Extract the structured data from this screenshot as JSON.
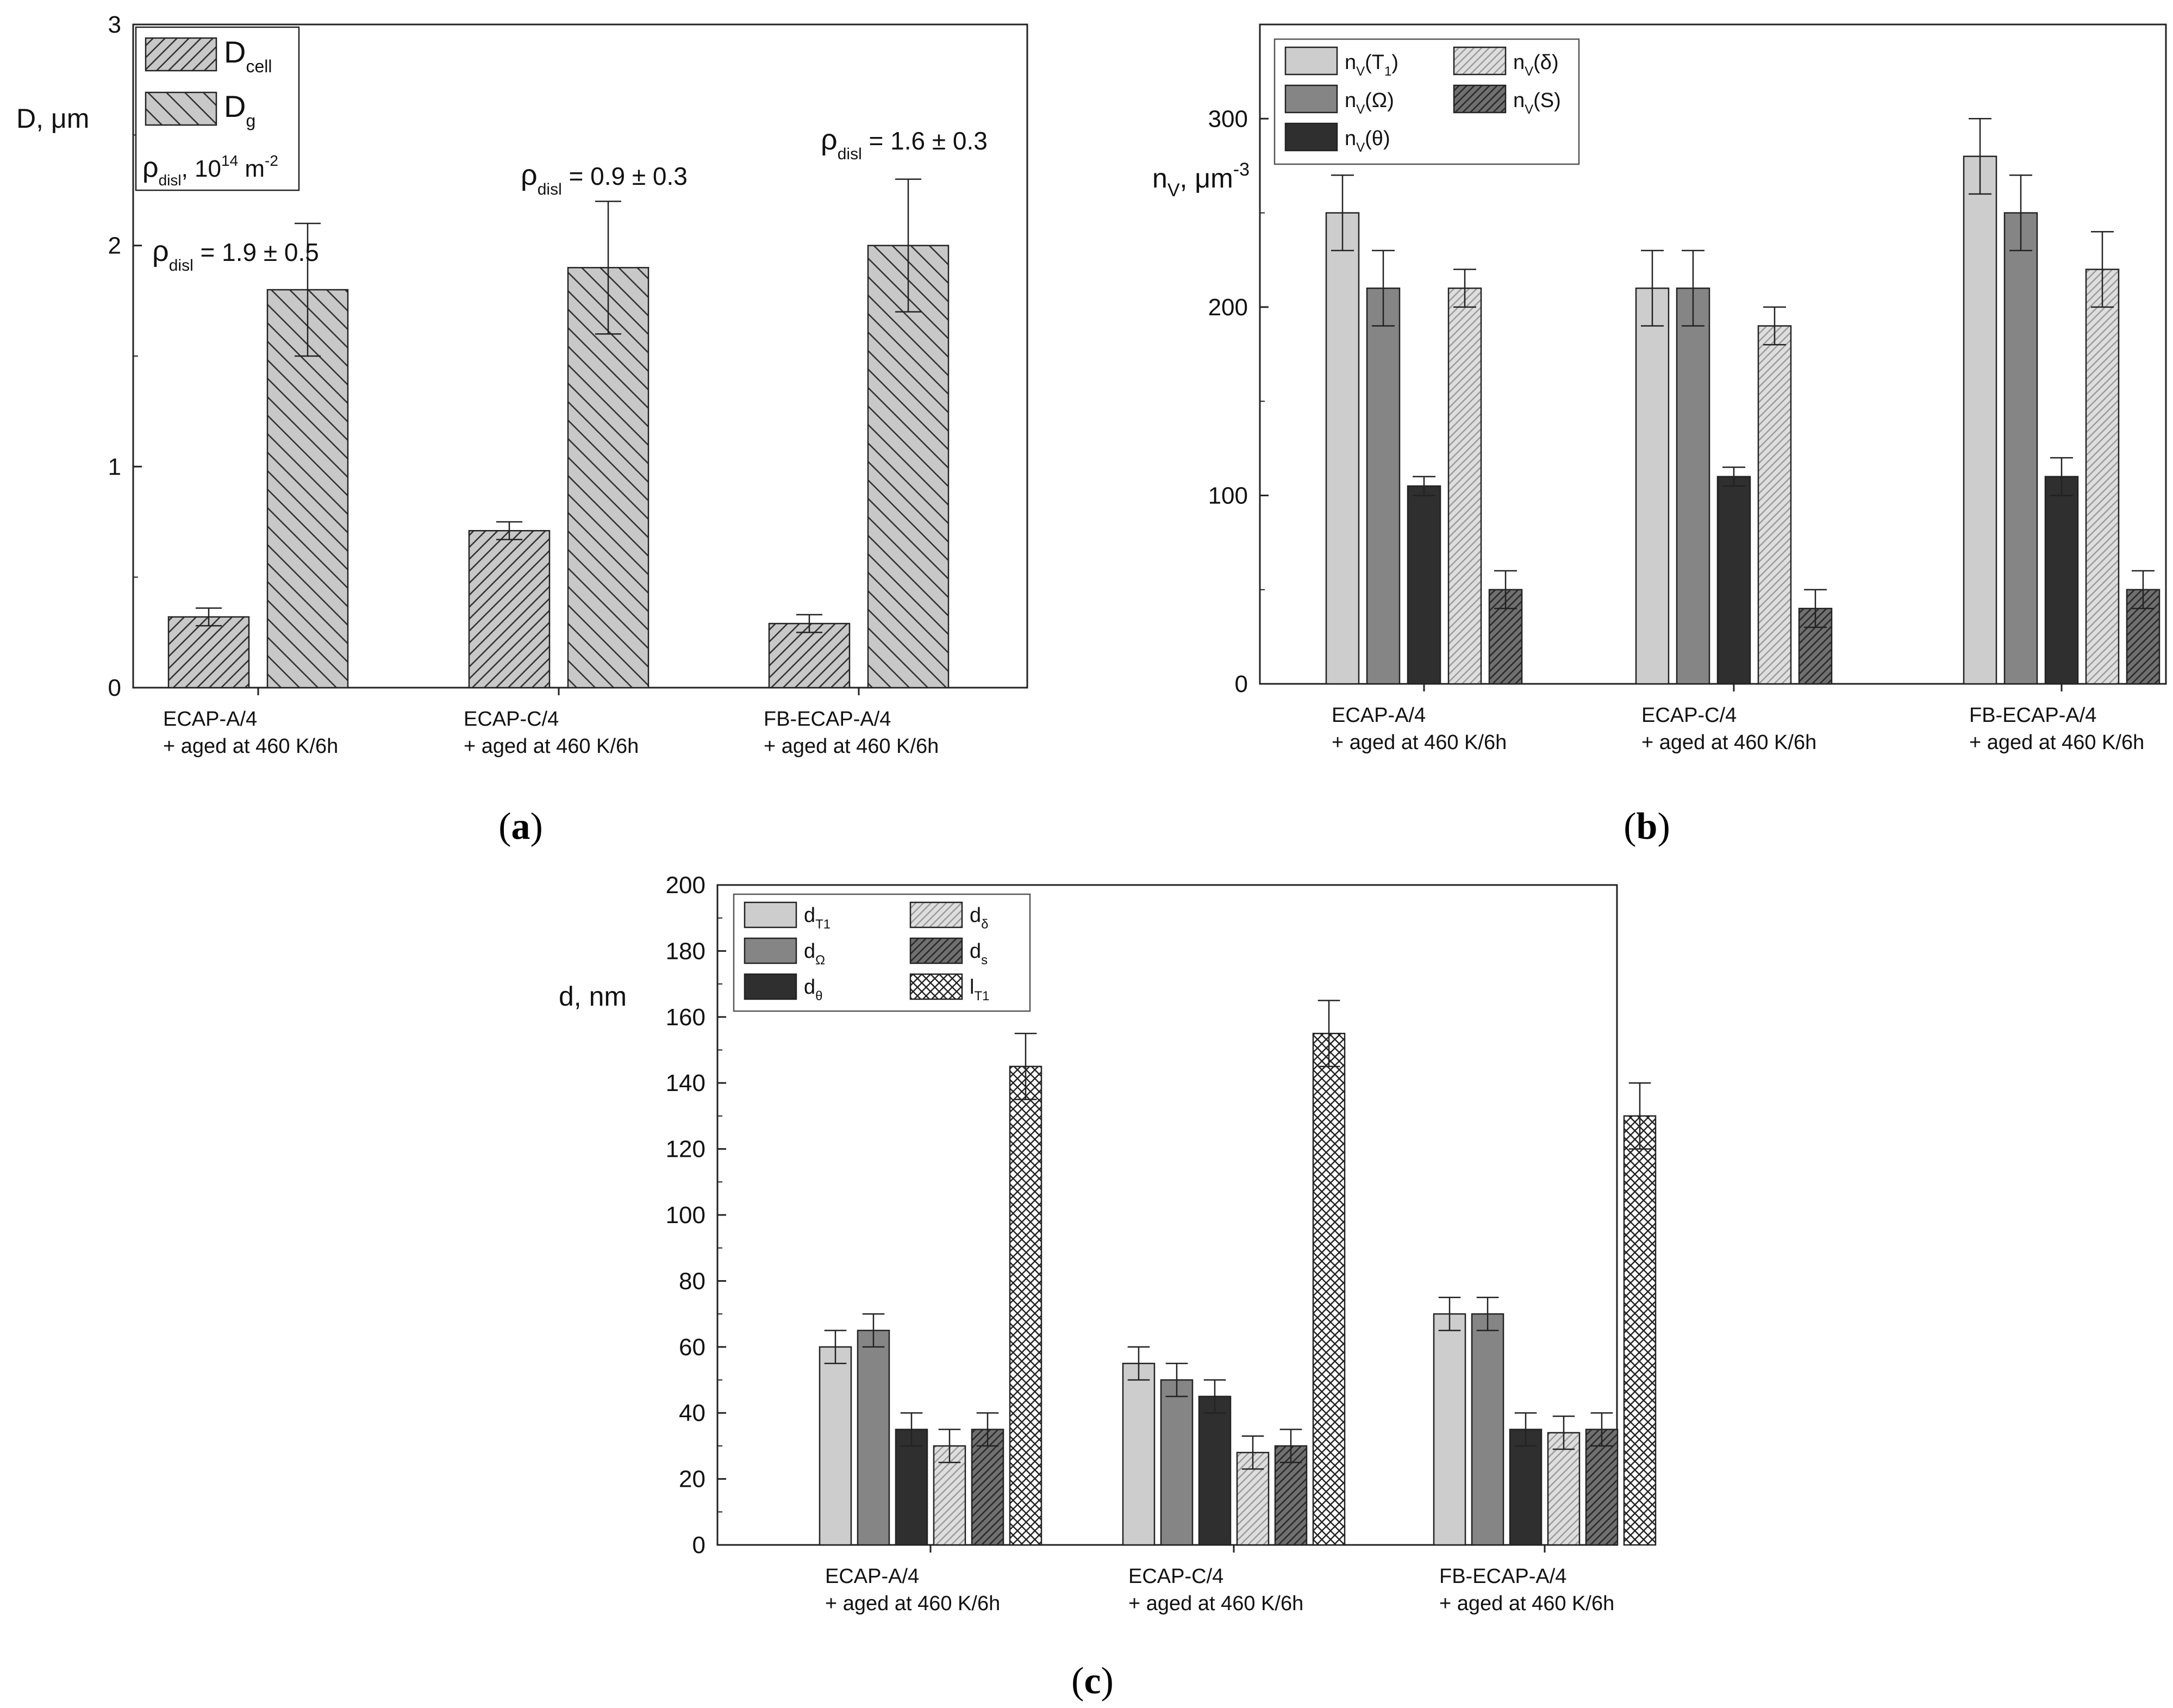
{
  "captions": {
    "a": {
      "open": "(",
      "letter": "a",
      "close": ")"
    },
    "b": {
      "open": "(",
      "letter": "b",
      "close": ")"
    },
    "c": {
      "open": "(",
      "letter": "c",
      "close": ")"
    }
  },
  "category_lines": [
    [
      "ECAP-A/4",
      "+ aged at 460 K/6h"
    ],
    [
      "ECAP-C/4",
      "+ aged at 460 K/6h"
    ],
    [
      "FB-ECAP-A/4",
      "+ aged at 460 K/6h"
    ]
  ],
  "chart_data": [
    {
      "id": "a",
      "type": "bar",
      "ylabel": "D, μm",
      "ylim": [
        0,
        3
      ],
      "yticks": [
        0,
        1,
        2,
        3
      ],
      "categories": [
        "ECAP-A/4 + aged at 460 K/6h",
        "ECAP-C/4 + aged at 460 K/6h",
        "FB-ECAP-A/4 + aged at 460 K/6h"
      ],
      "series": [
        {
          "name": "D_cell",
          "label": "D",
          "sub": "cell",
          "values": [
            0.32,
            0.71,
            0.29
          ],
          "errors": [
            0.04,
            0.04,
            0.04
          ],
          "fill": "#c8c8c8",
          "pattern": "hatch-fwd"
        },
        {
          "name": "D_g",
          "label": "D",
          "sub": "g",
          "values": [
            1.8,
            1.9,
            2.0
          ],
          "errors": [
            0.3,
            0.3,
            0.3
          ],
          "fill": "#c8c8c8",
          "pattern": "hatch-back"
        }
      ],
      "legend": {
        "position": "top-left",
        "note": {
          "rho": "ρ",
          "sub": "disl",
          "mid": ", 10",
          "sup1": "14",
          "unit": " m",
          "sup2": "-2"
        }
      },
      "annotations": [
        {
          "category": 0,
          "rho": "ρ",
          "sub": "disl",
          "text": " = 1.9 ± 0.5"
        },
        {
          "category": 1,
          "rho": "ρ",
          "sub": "disl",
          "text": " = 0.9 ± 0.3"
        },
        {
          "category": 2,
          "rho": "ρ",
          "sub": "disl",
          "text": " = 1.6 ± 0.3"
        }
      ]
    },
    {
      "id": "b",
      "type": "bar",
      "ylabel": "n",
      "ylabel_sub": "V",
      "ylabel_tail": ", μm",
      "ylabel_sup": "-3",
      "ylim": [
        0,
        350
      ],
      "yticks": [
        0,
        100,
        200,
        300
      ],
      "categories": [
        "ECAP-A/4 + aged at 460 K/6h",
        "ECAP-C/4 + aged at 460 K/6h",
        "FB-ECAP-A/4 + aged at 460 K/6h"
      ],
      "series": [
        {
          "name": "n_V(T1)",
          "label": "n",
          "sub": "V",
          "tail": "(T",
          "tailsub": "1",
          "tailend": ")",
          "values": [
            250,
            210,
            280
          ],
          "errors": [
            20,
            20,
            20
          ],
          "fill": "#cdcdcd",
          "pattern": "none"
        },
        {
          "name": "n_V(Ω)",
          "label": "n",
          "sub": "V",
          "tail": "(Ω)",
          "values": [
            210,
            210,
            250
          ],
          "errors": [
            20,
            20,
            20
          ],
          "fill": "#858585",
          "pattern": "none"
        },
        {
          "name": "n_V(θ)",
          "label": "n",
          "sub": "V",
          "tail": "(θ)",
          "values": [
            105,
            110,
            110
          ],
          "errors": [
            5,
            5,
            10
          ],
          "fill": "#2f2f2f",
          "pattern": "none"
        },
        {
          "name": "n_V(δ)",
          "label": "n",
          "sub": "V",
          "tail": "(δ)",
          "values": [
            210,
            190,
            220
          ],
          "errors": [
            10,
            10,
            20
          ],
          "fill": "#d9d9d9",
          "pattern": "hatch-light"
        },
        {
          "name": "n_V(S)",
          "label": "n",
          "sub": "V",
          "tail": "(S)",
          "values": [
            50,
            40,
            50
          ],
          "errors": [
            10,
            10,
            10
          ],
          "fill": "#6e6e6e",
          "pattern": "hatch-dark"
        }
      ],
      "legend": {
        "position": "top-left",
        "columns": [
          [
            0,
            1,
            2
          ],
          [
            3,
            4
          ]
        ]
      }
    },
    {
      "id": "c",
      "type": "bar",
      "ylabel": "d, nm",
      "ylim": [
        0,
        200
      ],
      "yticks": [
        0,
        20,
        40,
        60,
        80,
        100,
        120,
        140,
        160,
        180,
        200
      ],
      "categories": [
        "ECAP-A/4 + aged at 460 K/6h",
        "ECAP-C/4 + aged at 460 K/6h",
        "FB-ECAP-A/4 + aged at 460 K/6h"
      ],
      "series": [
        {
          "name": "d_T1",
          "label": "d",
          "sub": "T1",
          "values": [
            60,
            55,
            70
          ],
          "errors": [
            5,
            5,
            5
          ],
          "fill": "#cdcdcd",
          "pattern": "none"
        },
        {
          "name": "d_Ω",
          "label": "d",
          "sub": "Ω",
          "values": [
            65,
            50,
            70
          ],
          "errors": [
            5,
            5,
            5
          ],
          "fill": "#858585",
          "pattern": "none"
        },
        {
          "name": "d_θ",
          "label": "d",
          "sub": "θ",
          "values": [
            35,
            45,
            35
          ],
          "errors": [
            5,
            5,
            5
          ],
          "fill": "#2f2f2f",
          "pattern": "none"
        },
        {
          "name": "d_δ",
          "label": "d",
          "sub": "δ",
          "values": [
            30,
            28,
            34
          ],
          "errors": [
            5,
            5,
            5
          ],
          "fill": "#d9d9d9",
          "pattern": "hatch-light"
        },
        {
          "name": "d_s",
          "label": "d",
          "sub": "s",
          "values": [
            35,
            30,
            35
          ],
          "errors": [
            5,
            5,
            5
          ],
          "fill": "#6e6e6e",
          "pattern": "hatch-dark"
        },
        {
          "name": "l_T1",
          "label": "l",
          "sub": "T1",
          "values": [
            145,
            155,
            130
          ],
          "errors": [
            10,
            10,
            10
          ],
          "fill": "#ffffff",
          "pattern": "crosshatch"
        }
      ],
      "legend": {
        "position": "top-left",
        "columns": [
          [
            0,
            1,
            2
          ],
          [
            3,
            4,
            5
          ]
        ]
      }
    }
  ]
}
